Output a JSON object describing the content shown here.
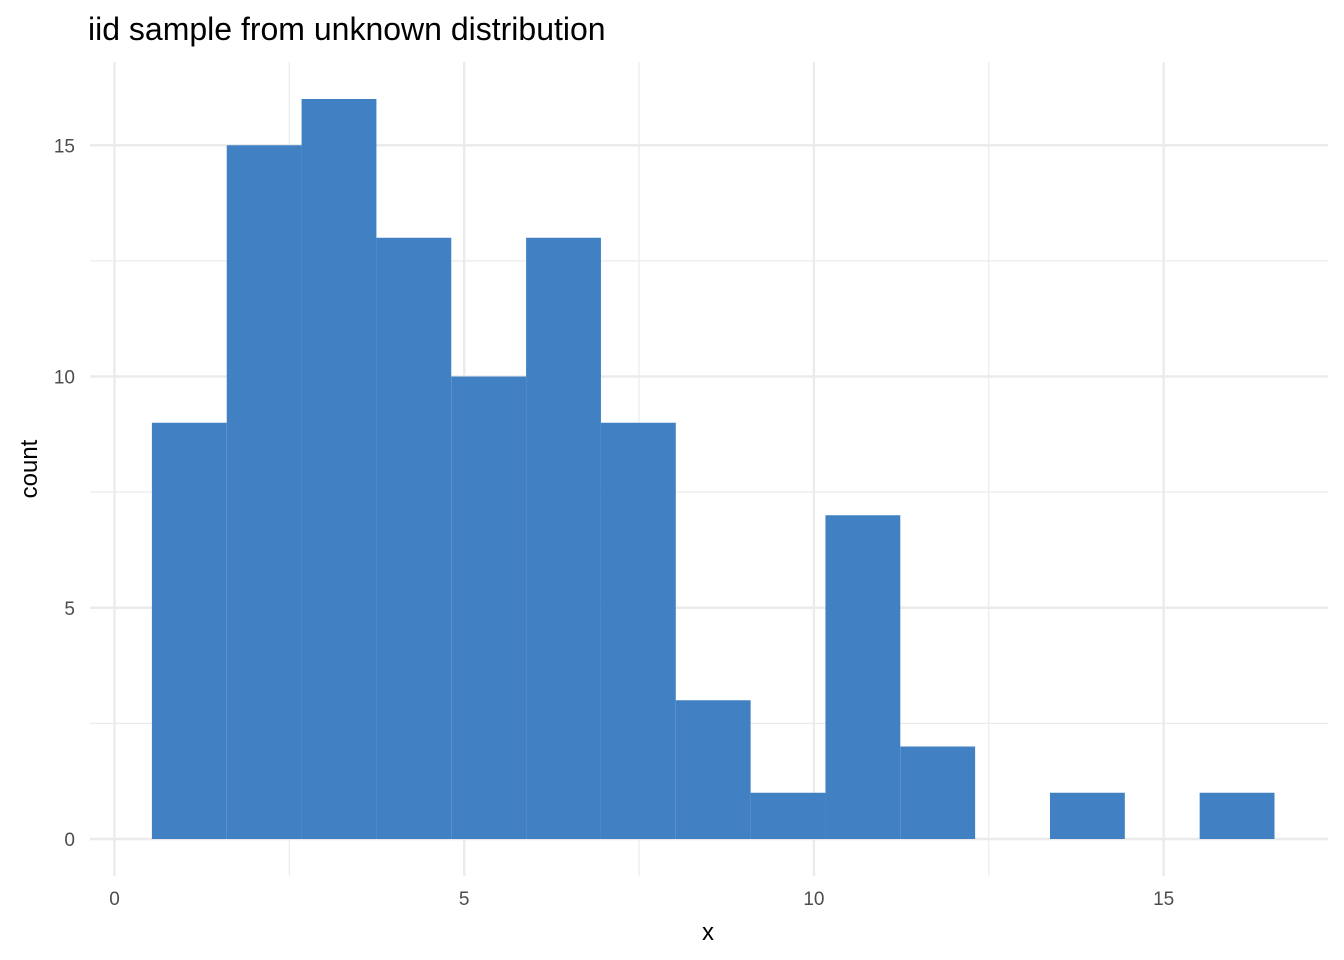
{
  "chart_data": {
    "type": "bar",
    "title": "iid sample from unknown distribution",
    "xlabel": "x",
    "ylabel": "count",
    "bar_color": "#4180C2",
    "grid_color": "#EBEBEB",
    "background": "#FFFFFF",
    "grid": true,
    "xlim": [
      -0.35,
      17.35
    ],
    "ylim": [
      -0.8,
      16.8
    ],
    "x_ticks": [
      0,
      5,
      10,
      15
    ],
    "x_tick_labels": [
      "0",
      "5",
      "10",
      "15"
    ],
    "y_ticks": [
      0,
      5,
      10,
      15
    ],
    "y_tick_labels": [
      "0",
      "5",
      "10",
      "15"
    ],
    "bin_width": 1.07,
    "bins": [
      {
        "center": 1.07,
        "count": 9
      },
      {
        "center": 2.14,
        "count": 15
      },
      {
        "center": 3.21,
        "count": 16
      },
      {
        "center": 4.28,
        "count": 13
      },
      {
        "center": 5.35,
        "count": 10
      },
      {
        "center": 6.42,
        "count": 13
      },
      {
        "center": 7.49,
        "count": 9
      },
      {
        "center": 8.56,
        "count": 3
      },
      {
        "center": 9.63,
        "count": 1
      },
      {
        "center": 10.7,
        "count": 7
      },
      {
        "center": 11.77,
        "count": 2
      },
      {
        "center": 12.84,
        "count": 0
      },
      {
        "center": 13.91,
        "count": 1
      },
      {
        "center": 14.98,
        "count": 0
      },
      {
        "center": 16.05,
        "count": 1
      }
    ]
  }
}
